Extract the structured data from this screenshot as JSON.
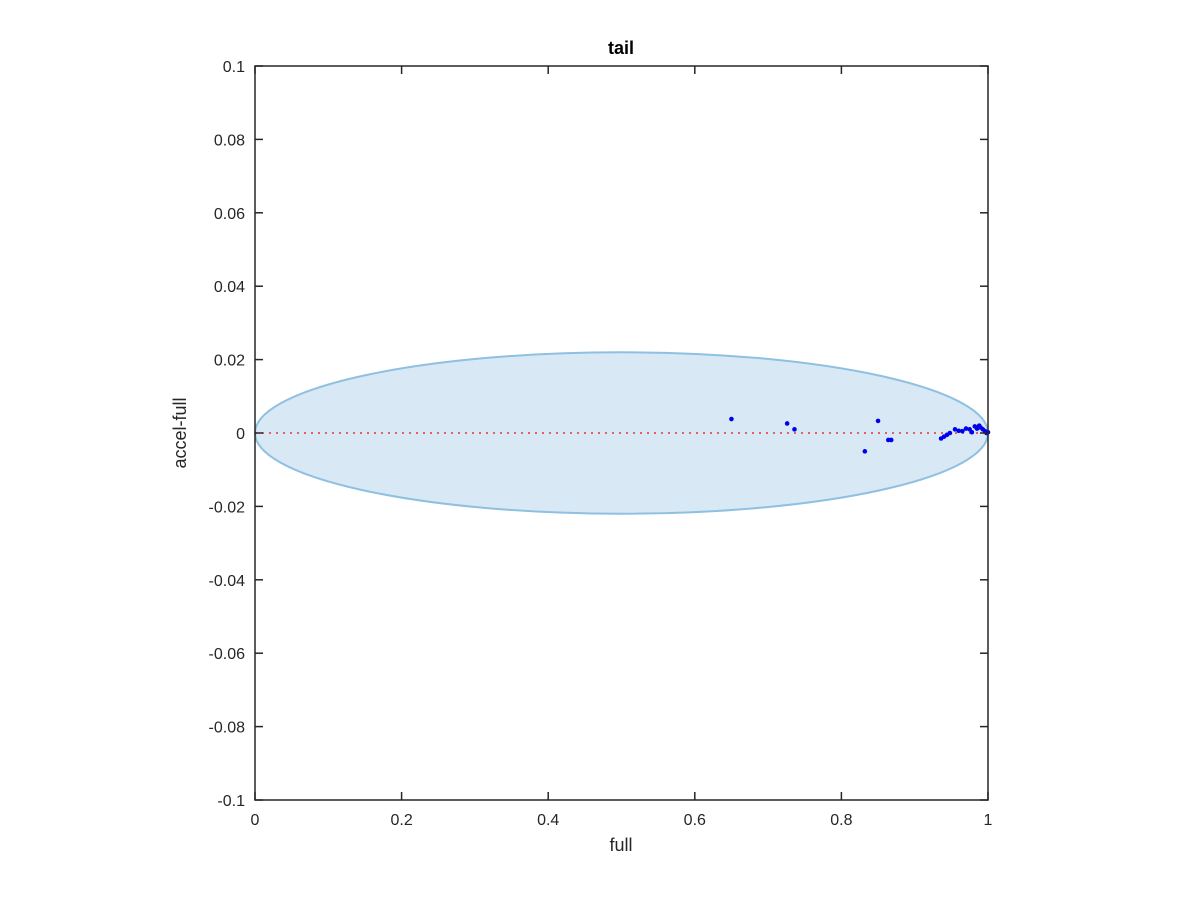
{
  "chart_data": {
    "type": "scatter",
    "title": "tail",
    "xlabel": "full",
    "ylabel": "accel-full",
    "xlim": [
      0,
      1
    ],
    "ylim": [
      -0.1,
      0.1
    ],
    "xticks": [
      0,
      0.2,
      0.4,
      0.6,
      0.8,
      1
    ],
    "xtick_labels": [
      "0",
      "0.2",
      "0.4",
      "0.6",
      "0.8",
      "1"
    ],
    "yticks": [
      0.1,
      0.08,
      0.06,
      0.04,
      0.02,
      0,
      -0.02,
      -0.04,
      -0.06,
      -0.08,
      -0.1
    ],
    "ytick_labels": [
      "0.1",
      "0.08",
      "0.06",
      "0.04",
      "0.02",
      "0",
      "-0.02",
      "-0.04",
      "-0.06",
      "-0.08",
      "-0.1"
    ],
    "grid": false,
    "reference_line": {
      "y": 0,
      "style": "dotted",
      "color": "#e8322e"
    },
    "ellipse": {
      "center_x": 0.5,
      "center_y": 0,
      "radius_x": 0.5,
      "radius_y": 0.022,
      "fill": "#d9e8f5",
      "stroke": "#8fc0e1"
    },
    "series": [
      {
        "color": "#0000ee",
        "x": [
          0.65,
          0.726,
          0.736,
          0.832,
          0.85,
          0.864,
          0.868,
          0.936,
          0.94,
          0.944,
          0.948,
          0.955,
          0.96,
          0.965,
          0.97,
          0.975,
          0.978,
          0.982,
          0.985,
          0.988,
          0.99,
          0.993,
          0.996,
          0.998,
          1.0
        ],
        "y": [
          0.0038,
          0.0026,
          0.001,
          -0.005,
          0.0033,
          -0.0019,
          -0.0019,
          -0.0015,
          -0.001,
          -0.0005,
          0.0,
          0.001,
          0.0006,
          0.0005,
          0.0012,
          0.001,
          0.0002,
          0.0018,
          0.0012,
          0.002,
          0.0015,
          0.001,
          0.0005,
          0.0,
          0.0002
        ]
      }
    ]
  }
}
